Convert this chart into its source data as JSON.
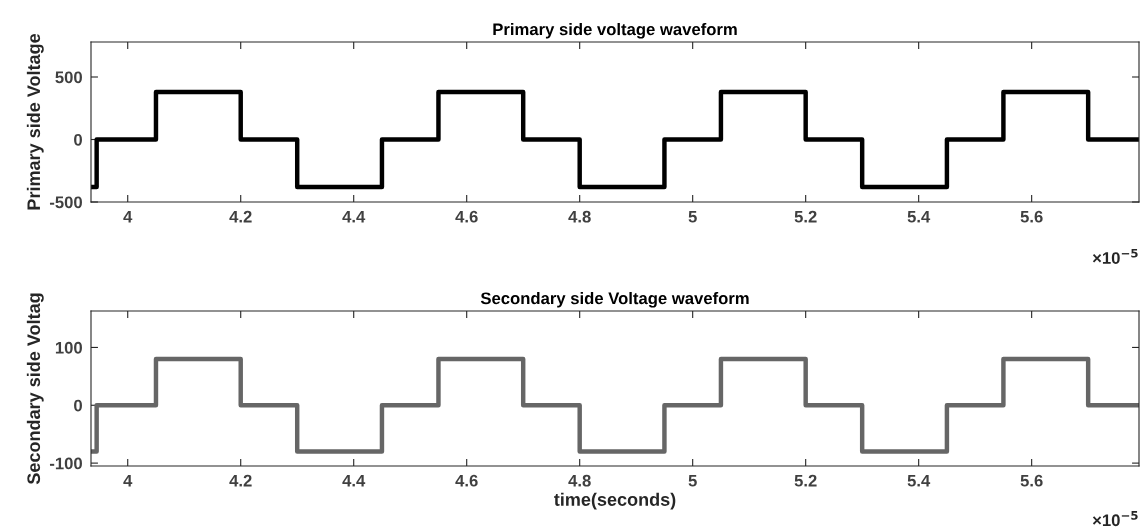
{
  "chart_data": [
    {
      "type": "step",
      "title": "Primary side voltage waveform",
      "ylabel": "Primary side Voltage",
      "x": [
        3.935,
        3.945,
        4.05,
        4.2,
        4.3,
        4.45,
        4.55,
        4.7,
        4.8,
        4.95,
        5.05,
        5.2,
        5.3,
        5.45,
        5.55,
        5.7,
        5.79
      ],
      "series": [
        {
          "color": "#000000",
          "values": [
            -380,
            0,
            380,
            0,
            -380,
            0,
            380,
            0,
            -380,
            0,
            380,
            0,
            -380,
            0,
            380,
            0,
            0
          ]
        }
      ],
      "xlim": [
        3.935,
        5.79
      ],
      "ylim": [
        -500,
        780
      ],
      "xticks": [
        4,
        4.2,
        4.4,
        4.6,
        4.8,
        5,
        5.2,
        5.4,
        5.6
      ],
      "yticks": [
        -500,
        0,
        500
      ],
      "annotations": [
        "×10$^{−5}$"
      ],
      "grid": false,
      "legend": false,
      "line_style": "solid",
      "marker": "none"
    },
    {
      "type": "step",
      "title": "Secondary side Voltage waveform",
      "ylabel": "Secondary side Voltag",
      "xlabel": "time(seconds)",
      "x": [
        3.935,
        3.945,
        4.05,
        4.2,
        4.3,
        4.45,
        4.55,
        4.7,
        4.8,
        4.95,
        5.05,
        5.2,
        5.3,
        5.45,
        5.55,
        5.7,
        5.79
      ],
      "series": [
        {
          "color": "#666666",
          "values": [
            -80,
            0,
            80,
            0,
            -80,
            0,
            80,
            0,
            -80,
            0,
            80,
            0,
            -80,
            0,
            80,
            0,
            0
          ]
        }
      ],
      "xlim": [
        3.935,
        5.79
      ],
      "ylim": [
        -105,
        163
      ],
      "xticks": [
        4,
        4.2,
        4.4,
        4.6,
        4.8,
        5,
        5.2,
        5.4,
        5.6
      ],
      "yticks": [
        -100,
        0,
        100
      ],
      "annotations": [
        "×10$^{−5}$"
      ],
      "grid": false,
      "legend": false,
      "line_style": "solid",
      "marker": "none"
    }
  ]
}
